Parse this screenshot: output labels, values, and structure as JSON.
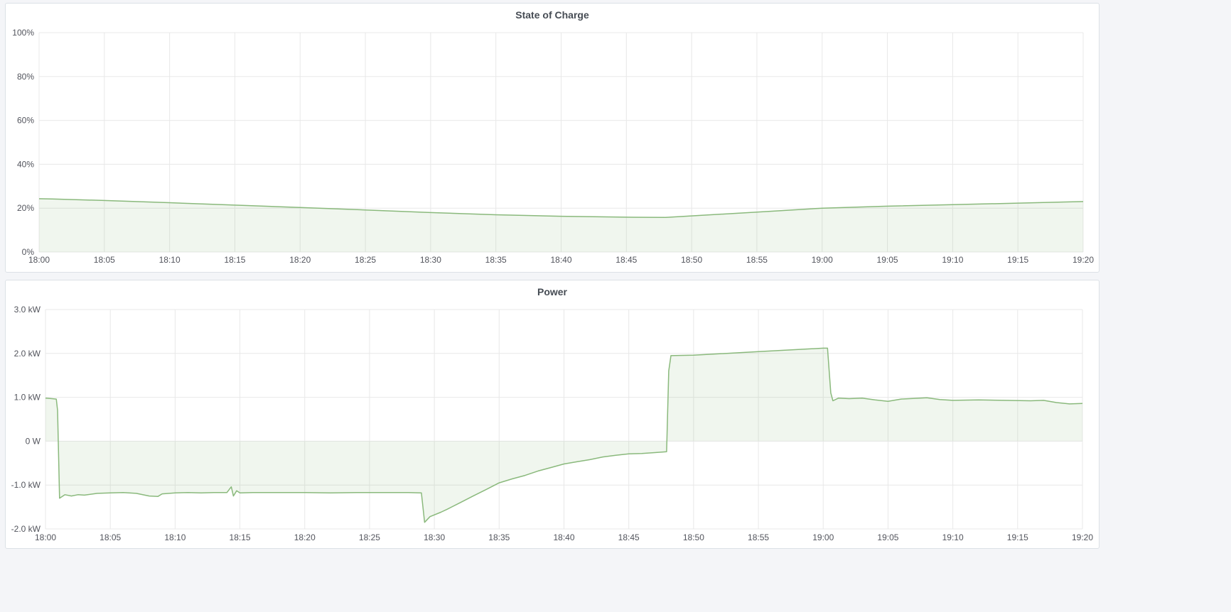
{
  "colors": {
    "line": "#8ab97c",
    "fill": "rgba(138,185,124,0.13)",
    "grid": "#e8e8e8",
    "background": "#f4f5f8"
  },
  "chart_data": [
    {
      "type": "area",
      "title": "State of Charge",
      "xlim": [
        "18:00",
        "19:20"
      ],
      "ylim": [
        0,
        100
      ],
      "grid": true,
      "xticks": [
        "18:00",
        "18:05",
        "18:10",
        "18:15",
        "18:20",
        "18:25",
        "18:30",
        "18:35",
        "18:40",
        "18:45",
        "18:50",
        "18:55",
        "19:00",
        "19:05",
        "19:10",
        "19:15",
        "19:20"
      ],
      "yticks": [
        {
          "value": 0,
          "label": "0%"
        },
        {
          "value": 20,
          "label": "20%"
        },
        {
          "value": 40,
          "label": "40%"
        },
        {
          "value": 60,
          "label": "60%"
        },
        {
          "value": 80,
          "label": "80%"
        },
        {
          "value": 100,
          "label": "100%"
        }
      ],
      "series": [
        {
          "points": [
            [
              "18:00:00",
              24.3
            ],
            [
              "18:01:00",
              24.2
            ],
            [
              "18:05:00",
              23.5
            ],
            [
              "18:10:00",
              22.5
            ],
            [
              "18:15:00",
              21.4
            ],
            [
              "18:20:00",
              20.3
            ],
            [
              "18:25:00",
              19.2
            ],
            [
              "18:30:00",
              18.0
            ],
            [
              "18:35:00",
              17.0
            ],
            [
              "18:40:00",
              16.3
            ],
            [
              "18:45:00",
              15.9
            ],
            [
              "18:48:00",
              15.8
            ],
            [
              "18:55:00",
              18.2
            ],
            [
              "19:00:00",
              20.0
            ],
            [
              "19:05:00",
              20.9
            ],
            [
              "19:10:00",
              21.6
            ],
            [
              "19:15:00",
              22.3
            ],
            [
              "19:20:00",
              23.0
            ]
          ]
        }
      ]
    },
    {
      "type": "area",
      "title": "Power",
      "xlim": [
        "18:00",
        "19:20"
      ],
      "ylim": [
        -2.0,
        3.0
      ],
      "yunit": "kW",
      "grid": true,
      "xticks": [
        "18:00",
        "18:05",
        "18:10",
        "18:15",
        "18:20",
        "18:25",
        "18:30",
        "18:35",
        "18:40",
        "18:45",
        "18:50",
        "18:55",
        "19:00",
        "19:05",
        "19:10",
        "19:15",
        "19:20"
      ],
      "yticks": [
        {
          "value": -2,
          "label": "-2.0 kW"
        },
        {
          "value": -1,
          "label": "-1.0 kW"
        },
        {
          "value": 0,
          "label": "0 W"
        },
        {
          "value": 1,
          "label": "1.0 kW"
        },
        {
          "value": 2,
          "label": "2.0 kW"
        },
        {
          "value": 3,
          "label": "3.0 kW"
        }
      ],
      "series": [
        {
          "points": [
            [
              "18:00:00",
              0.98
            ],
            [
              "18:00:30",
              0.97
            ],
            [
              "18:00:50",
              0.96
            ],
            [
              "18:00:56",
              0.7
            ],
            [
              "18:01:05",
              -1.3
            ],
            [
              "18:01:30",
              -1.22
            ],
            [
              "18:02:00",
              -1.25
            ],
            [
              "18:02:30",
              -1.22
            ],
            [
              "18:03:00",
              -1.23
            ],
            [
              "18:04:00",
              -1.19
            ],
            [
              "18:05:00",
              -1.18
            ],
            [
              "18:06:00",
              -1.17
            ],
            [
              "18:07:00",
              -1.19
            ],
            [
              "18:08:00",
              -1.25
            ],
            [
              "18:08:40",
              -1.26
            ],
            [
              "18:09:00",
              -1.2
            ],
            [
              "18:10:00",
              -1.18
            ],
            [
              "18:11:00",
              -1.17
            ],
            [
              "18:12:00",
              -1.18
            ],
            [
              "18:13:00",
              -1.17
            ],
            [
              "18:14:00",
              -1.17
            ],
            [
              "18:14:20",
              -1.04
            ],
            [
              "18:14:30",
              -1.25
            ],
            [
              "18:14:45",
              -1.13
            ],
            [
              "18:15:00",
              -1.18
            ],
            [
              "18:16:00",
              -1.17
            ],
            [
              "18:18:00",
              -1.17
            ],
            [
              "18:20:00",
              -1.17
            ],
            [
              "18:22:00",
              -1.18
            ],
            [
              "18:24:00",
              -1.17
            ],
            [
              "18:26:00",
              -1.17
            ],
            [
              "18:28:00",
              -1.17
            ],
            [
              "18:29:00",
              -1.18
            ],
            [
              "18:29:15",
              -1.85
            ],
            [
              "18:29:40",
              -1.72
            ],
            [
              "18:30:30",
              -1.62
            ],
            [
              "18:31:00",
              -1.55
            ],
            [
              "18:32:00",
              -1.4
            ],
            [
              "18:33:00",
              -1.25
            ],
            [
              "18:34:00",
              -1.1
            ],
            [
              "18:35:00",
              -0.95
            ],
            [
              "18:36:00",
              -0.86
            ],
            [
              "18:37:00",
              -0.78
            ],
            [
              "18:38:00",
              -0.68
            ],
            [
              "18:39:00",
              -0.6
            ],
            [
              "18:40:00",
              -0.52
            ],
            [
              "18:41:00",
              -0.47
            ],
            [
              "18:42:00",
              -0.42
            ],
            [
              "18:43:00",
              -0.36
            ],
            [
              "18:44:00",
              -0.32
            ],
            [
              "18:45:00",
              -0.29
            ],
            [
              "18:46:00",
              -0.28
            ],
            [
              "18:47:00",
              -0.26
            ],
            [
              "18:47:55",
              -0.24
            ],
            [
              "18:48:05",
              1.6
            ],
            [
              "18:48:15",
              1.95
            ],
            [
              "18:50:00",
              1.96
            ],
            [
              "18:55:00",
              2.04
            ],
            [
              "19:00:00",
              2.12
            ],
            [
              "19:00:20",
              2.12
            ],
            [
              "19:00:35",
              1.1
            ],
            [
              "19:00:45",
              0.92
            ],
            [
              "19:01:10",
              0.98
            ],
            [
              "19:02:00",
              0.97
            ],
            [
              "19:03:00",
              0.98
            ],
            [
              "19:04:00",
              0.94
            ],
            [
              "19:05:00",
              0.91
            ],
            [
              "19:06:00",
              0.96
            ],
            [
              "19:08:00",
              0.99
            ],
            [
              "19:09:00",
              0.95
            ],
            [
              "19:10:00",
              0.93
            ],
            [
              "19:12:00",
              0.94
            ],
            [
              "19:14:00",
              0.93
            ],
            [
              "19:16:00",
              0.92
            ],
            [
              "19:17:00",
              0.93
            ],
            [
              "19:18:00",
              0.88
            ],
            [
              "19:19:00",
              0.85
            ],
            [
              "19:20:00",
              0.86
            ]
          ]
        }
      ]
    }
  ]
}
